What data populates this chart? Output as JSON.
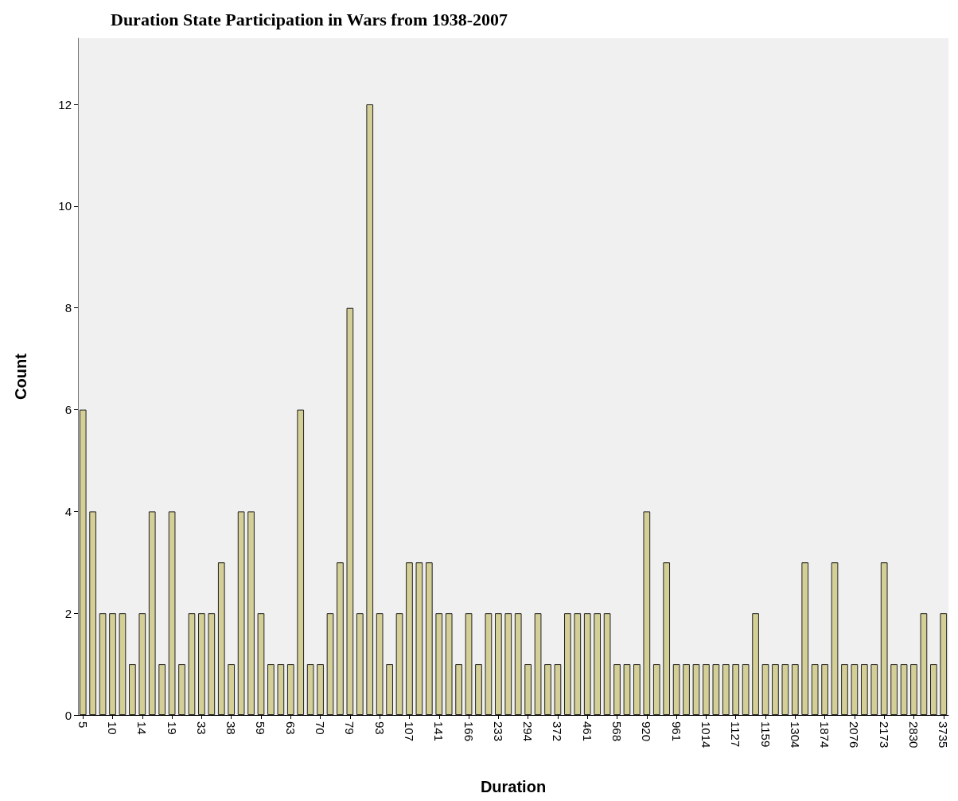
{
  "chart_data": {
    "type": "bar",
    "title": "Duration State Participation in Wars from 1938-2007",
    "xlabel": "Duration",
    "ylabel": "Count",
    "categories": [
      "5",
      null,
      null,
      "10",
      null,
      null,
      "14",
      null,
      null,
      "19",
      null,
      null,
      "33",
      null,
      null,
      "38",
      null,
      null,
      "59",
      null,
      null,
      "63",
      null,
      null,
      "70",
      null,
      null,
      "79",
      null,
      null,
      "93",
      null,
      null,
      "107",
      null,
      null,
      "141",
      null,
      null,
      "166",
      null,
      null,
      "233",
      null,
      null,
      "294",
      null,
      null,
      "372",
      null,
      null,
      "461",
      null,
      null,
      "568",
      null,
      null,
      "920",
      null,
      null,
      "961",
      null,
      null,
      "1014",
      null,
      null,
      "1127",
      null,
      null,
      "1159",
      null,
      null,
      "1304",
      null,
      null,
      "1874",
      null,
      null,
      "2076",
      null,
      null,
      "2173",
      null,
      null,
      "2830",
      null,
      null,
      "3735"
    ],
    "values": [
      6,
      4,
      2,
      2,
      2,
      1,
      2,
      4,
      1,
      4,
      1,
      2,
      2,
      2,
      3,
      1,
      4,
      4,
      2,
      1,
      1,
      1,
      6,
      1,
      1,
      2,
      3,
      8,
      2,
      12,
      2,
      1,
      2,
      3,
      3,
      3,
      2,
      2,
      1,
      2,
      1,
      2,
      2,
      2,
      2,
      1,
      2,
      1,
      1,
      2,
      2,
      2,
      2,
      2,
      1,
      1,
      1,
      4,
      1,
      3,
      1,
      1,
      1,
      1,
      1,
      1,
      1,
      1,
      2,
      1,
      1,
      1,
      1,
      3,
      1,
      1,
      3,
      1,
      1,
      1,
      1,
      3,
      1,
      1,
      1,
      2,
      1,
      2
    ],
    "color": "#d4cf96",
    "ylim": [
      0,
      13.3
    ],
    "yticks": [
      0,
      2,
      4,
      6,
      8,
      10,
      12
    ],
    "grid": false
  }
}
